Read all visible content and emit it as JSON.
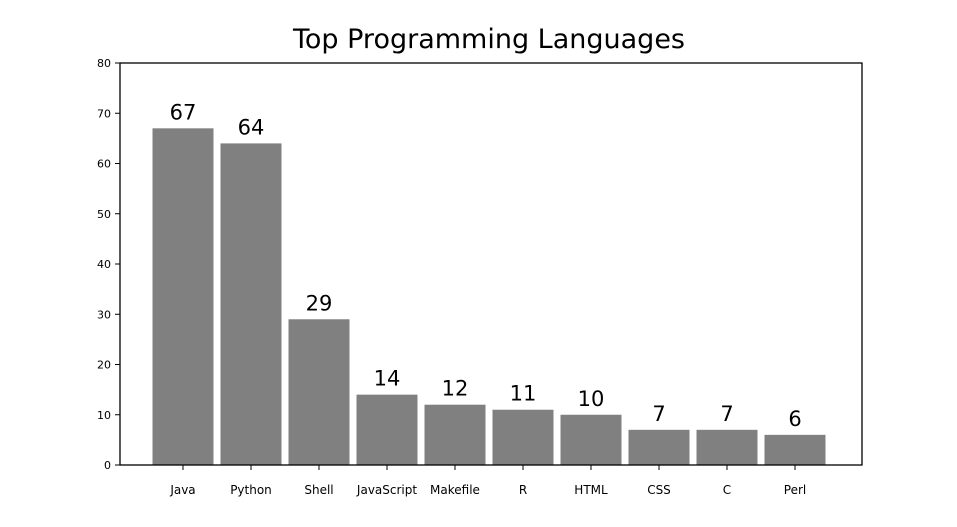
{
  "chart_data": {
    "type": "bar",
    "title": "Top Programming Languages",
    "xlabel": "",
    "ylabel": "",
    "categories": [
      "Java",
      "Python",
      "Shell",
      "JavaScript",
      "Makefile",
      "R",
      "HTML",
      "CSS",
      "C",
      "Perl"
    ],
    "values": [
      67,
      64,
      29,
      14,
      12,
      11,
      10,
      7,
      7,
      6
    ],
    "ylim": [
      0,
      80
    ],
    "yticks": [
      0,
      10,
      20,
      30,
      40,
      50,
      60,
      70,
      80
    ],
    "grid": false,
    "legend": "none",
    "bar_color": "#808080"
  }
}
